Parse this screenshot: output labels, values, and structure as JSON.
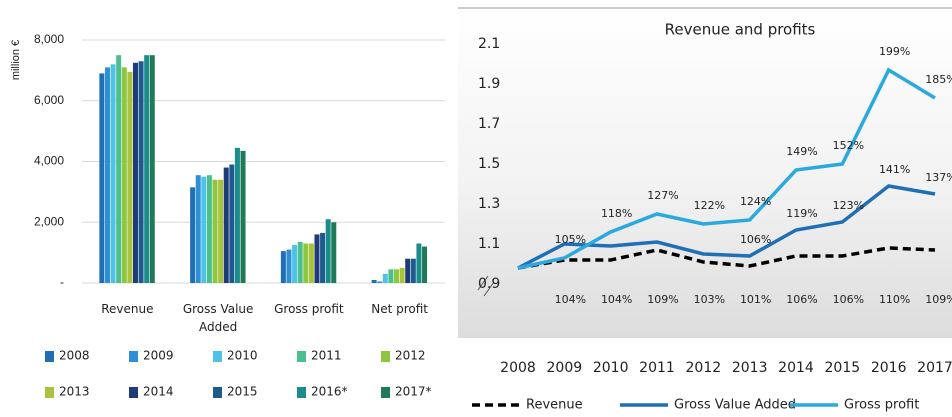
{
  "chart_data": [
    {
      "type": "bar",
      "ylabel": "million €",
      "categories": [
        "Revenue",
        "Gross Value Added",
        "Gross profit",
        "Net profit"
      ],
      "ylim": [
        0,
        8000
      ],
      "yticks": [
        {
          "value": 0,
          "label": "-"
        },
        {
          "value": 2000,
          "label": "2,000"
        },
        {
          "value": 4000,
          "label": "4,000"
        },
        {
          "value": 6000,
          "label": "6,000"
        },
        {
          "value": 8000,
          "label": "8,000"
        }
      ],
      "grid": true,
      "legend": "bottom",
      "series": [
        {
          "name": "2008",
          "color": "#1f6fb4",
          "values": [
            6900,
            3150,
            1050,
            100
          ]
        },
        {
          "name": "2009",
          "color": "#2f8fd6",
          "values": [
            7100,
            3550,
            1100,
            50
          ]
        },
        {
          "name": "2010",
          "color": "#4fc3e6",
          "values": [
            7200,
            3500,
            1250,
            300
          ]
        },
        {
          "name": "2011",
          "color": "#4cbf8f",
          "values": [
            7500,
            3550,
            1350,
            450
          ]
        },
        {
          "name": "2012",
          "color": "#8dc63f",
          "values": [
            7100,
            3400,
            1300,
            450
          ]
        },
        {
          "name": "2013",
          "color": "#a9c43c",
          "values": [
            6950,
            3400,
            1300,
            500
          ]
        },
        {
          "name": "2014",
          "color": "#1f3c78",
          "values": [
            7250,
            3800,
            1600,
            800
          ]
        },
        {
          "name": "2015",
          "color": "#1d5a8e",
          "values": [
            7300,
            3900,
            1650,
            800
          ]
        },
        {
          "name": "2016*",
          "color": "#1a8c8c",
          "values": [
            7500,
            4450,
            2100,
            1300
          ]
        },
        {
          "name": "2017*",
          "color": "#1f7a58",
          "values": [
            7500,
            4350,
            2000,
            1200
          ]
        }
      ]
    },
    {
      "type": "line",
      "title": "Revenue and profits",
      "x": [
        2008,
        2009,
        2010,
        2011,
        2012,
        2013,
        2014,
        2015,
        2016,
        2017
      ],
      "xlim": [
        2008,
        2017
      ],
      "ylim": [
        0.9,
        2.1
      ],
      "yticks": [
        0.9,
        1.1,
        1.3,
        1.5,
        1.7,
        1.9,
        2.1
      ],
      "legend": "bottom",
      "series": [
        {
          "name": "Revenue",
          "color": "#000000",
          "dash": true,
          "values": [
            1,
            1.04,
            1.04,
            1.09,
            1.03,
            1.01,
            1.06,
            1.06,
            1.1,
            1.09
          ],
          "value_labels": [
            null,
            "104%",
            "104%",
            "109%",
            "103%",
            "101%",
            "106%",
            "106%",
            "110%",
            "109%"
          ]
        },
        {
          "name": "Gross Value Added",
          "color": "#1f6fb5",
          "dash": false,
          "values": [
            1,
            1.12,
            1.11,
            1.13,
            1.07,
            1.06,
            1.19,
            1.23,
            1.41,
            1.37
          ],
          "value_labels": [
            null,
            null,
            null,
            null,
            null,
            "106%",
            "119%",
            "123%",
            "141%",
            "137%"
          ]
        },
        {
          "name": "Gross profit",
          "color": "#2aa8e0",
          "dash": false,
          "values": [
            1,
            1.05,
            1.18,
            1.27,
            1.22,
            1.24,
            1.49,
            1.52,
            1.99,
            1.85
          ],
          "value_labels": [
            null,
            "105%",
            "118%",
            "127%",
            "122%",
            "124%",
            "149%",
            "152%",
            "199%",
            "185%"
          ]
        }
      ]
    }
  ]
}
